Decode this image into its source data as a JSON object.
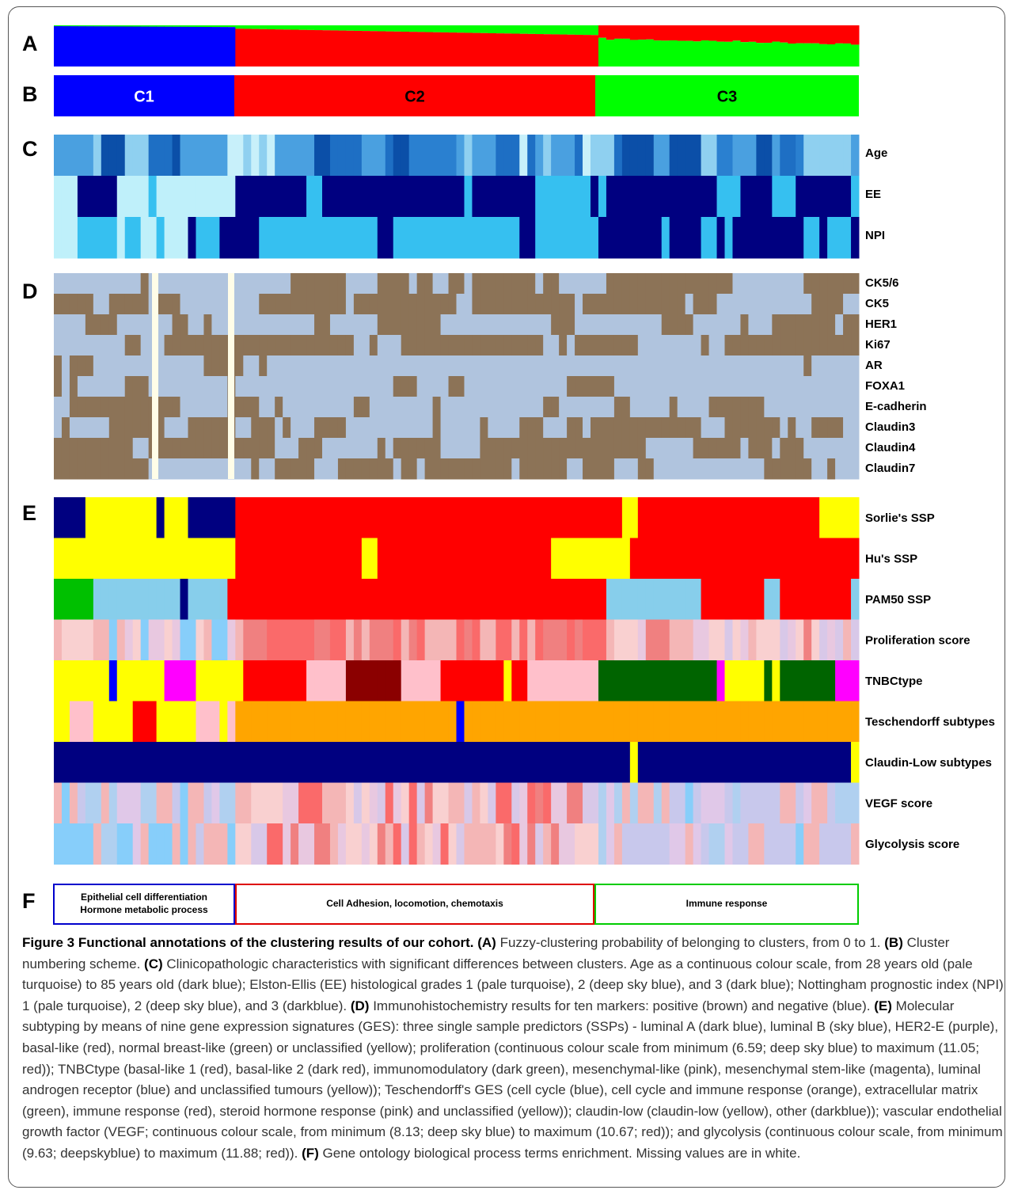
{
  "panels": [
    "A",
    "B",
    "C",
    "D",
    "E",
    "F"
  ],
  "clusters": [
    "C1",
    "C2",
    "C3"
  ],
  "rows_c": [
    "Age",
    "EE",
    "NPI"
  ],
  "rows_d": [
    "CK5/6",
    "CK5",
    "HER1",
    "Ki67",
    "AR",
    "FOXA1",
    "E-cadherin",
    "Claudin3",
    "Claudin4",
    "Claudin7"
  ],
  "rows_e": [
    "Sorlie's SSP",
    "Hu's SSP",
    "PAM50 SSP",
    "Proliferation score",
    "TNBCtype",
    "Teschendorff subtypes",
    "Claudin-Low subtypes",
    "VEGF score",
    "Glycolysis score"
  ],
  "go_terms": [
    [
      "Epithelial cell differentiation",
      "Hormone metabolic process"
    ],
    [
      "Cell Adhesion, locomotion, chemotaxis"
    ],
    [
      "Immune response"
    ]
  ],
  "caption": {
    "title": "Figure 3 Functional annotations of the clustering results of our cohort.",
    "parts": [
      {
        "label": "(A)",
        "text": "Fuzzy-clustering probability of belonging to clusters, from 0 to 1."
      },
      {
        "label": "(B)",
        "text": "Cluster numbering scheme."
      },
      {
        "label": "(C)",
        "text": "Clinicopathologic characteristics with significant differences between clusters. Age as a continuous colour scale, from 28 years old (pale turquoise) to 85 years old (dark blue); Elston-Ellis (EE) histological grades 1 (pale turquoise), 2 (deep sky blue), and 3 (dark blue); Nottingham prognostic index (NPI) 1 (pale turquoise), 2 (deep sky blue), and 3 (darkblue)."
      },
      {
        "label": "(D)",
        "text": "Immunohistochemistry results for ten markers: positive (brown) and negative (blue)."
      },
      {
        "label": "(E)",
        "text": "Molecular subtyping by means of nine gene expression signatures (GES): three single sample predictors (SSPs) - luminal A (dark blue), luminal B (sky blue), HER2-E (purple), basal-like (red), normal breast-like (green) or unclassified (yellow); proliferation (continuous colour scale from minimum (6.59; deep sky blue) to maximum (11.05; red)); TNBCtype (basal-like 1 (red), basal-like 2 (dark red), immunomodulatory (dark green), mesenchymal-like (pink), mesenchymal stem-like (magenta), luminal androgen receptor (blue) and unclassified tumours (yellow)); Teschendorff's GES (cell cycle (blue), cell cycle and immune response (orange), extracellular matrix (green), immune response (red), steroid hormone response (pink) and unclassified (yellow)); claudin-low (claudin-low (yellow), other (darkblue)); vascular endothelial growth factor (VEGF; continuous colour scale, from minimum (8.13; deep sky blue) to maximum (10.67; red)); and glycolysis (continuous colour scale, from minimum (9.63; deepskyblue) to maximum (11.88; red))."
      },
      {
        "label": "(F)",
        "text": "Gene ontology biological process terms enrichment. Missing values are in white."
      }
    ]
  }
}
